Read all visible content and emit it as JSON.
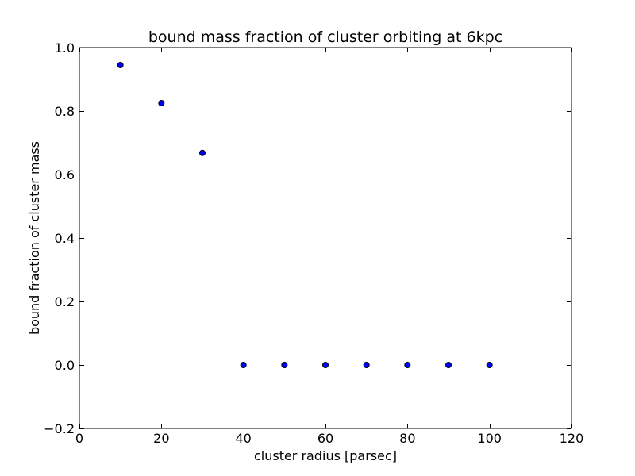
{
  "chart_data": {
    "type": "scatter",
    "title": "bound mass fraction of cluster orbiting at 6kpc",
    "xlabel": "cluster radius [parsec]",
    "ylabel": "bound fraction of cluster mass",
    "xlim": [
      0,
      120
    ],
    "ylim": [
      -0.2,
      1.0
    ],
    "xticks": [
      0,
      20,
      40,
      60,
      80,
      100,
      120
    ],
    "yticks": [
      -0.2,
      0.0,
      0.2,
      0.4,
      0.6,
      0.8,
      1.0
    ],
    "xtick_labels": [
      "0",
      "20",
      "40",
      "60",
      "80",
      "100",
      "120"
    ],
    "ytick_labels": [
      "−0.2",
      "0.0",
      "0.2",
      "0.4",
      "0.6",
      "0.8",
      "1.0"
    ],
    "grid": false,
    "legend": null,
    "marker_color": "#0000ff",
    "marker_edge_color": "#000000",
    "points": [
      {
        "x": 10,
        "y": 0.945
      },
      {
        "x": 20,
        "y": 0.825
      },
      {
        "x": 30,
        "y": 0.668
      },
      {
        "x": 40,
        "y": 0.0
      },
      {
        "x": 50,
        "y": 0.0
      },
      {
        "x": 60,
        "y": 0.0
      },
      {
        "x": 70,
        "y": 0.0
      },
      {
        "x": 80,
        "y": 0.0
      },
      {
        "x": 90,
        "y": 0.0
      },
      {
        "x": 100,
        "y": 0.0
      }
    ]
  }
}
